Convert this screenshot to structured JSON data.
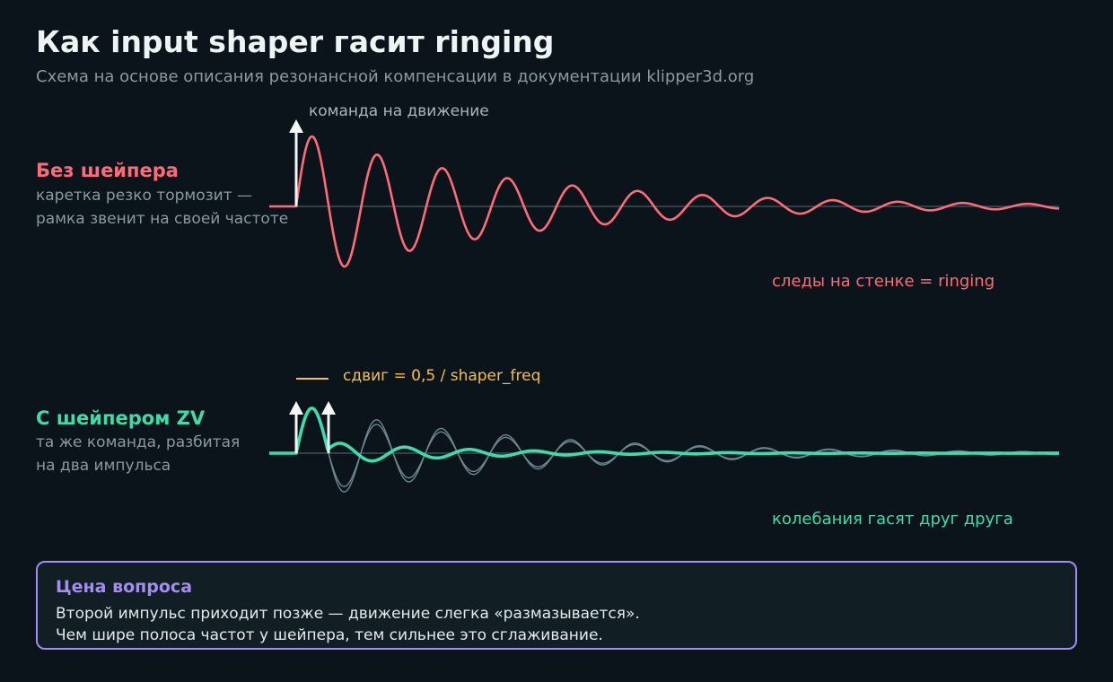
{
  "header": {
    "title": "Как input shaper гасит ringing",
    "subtitle": "Схема на основе описания резонансной компенсации в документации klipper3d.org"
  },
  "without_shaper": {
    "title": "Без шейпера",
    "desc_line1": "каретка резко тормозит —",
    "desc_line2": "рамка звенит на своей частоте",
    "impulse_label": "команда на движение",
    "result_label": "следы на стенке = ringing",
    "color": "#ff6b78"
  },
  "with_shaper": {
    "title": "С шейпером ZV",
    "desc_line1": "та же команда, разбитая",
    "desc_line2": "на два импульса",
    "shift_label": "сдвиг = 0,5 / shaper_freq",
    "result_label": "колебания гасят друг друга",
    "color": "#3ddcaa",
    "shift_color": "#f5c044"
  },
  "note": {
    "title": "Цена вопроса",
    "line1": "Второй импульс приходит позже — движение слегка «размазывается».",
    "line2": "Чем шире полоса частот у шейпера, тем сильнее это сглаживание."
  },
  "colors": {
    "background": "#0a141a",
    "ghost_wave": "#6d8790",
    "arrow": "#f2f6f6",
    "note_border": "#a48cf2"
  }
}
